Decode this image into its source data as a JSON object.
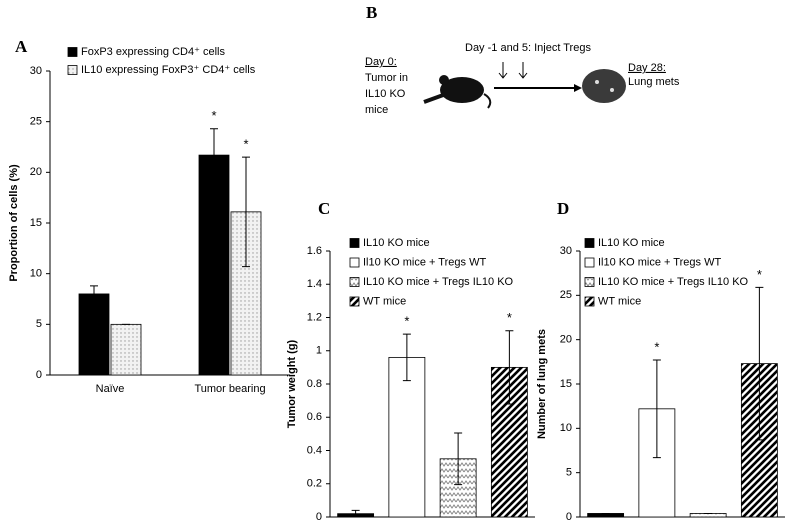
{
  "chart_data": [
    {
      "type": "bar",
      "panel": "A",
      "ylabel": "Proportion of cells (%)",
      "categories": [
        "Naïve",
        "Tumor bearing"
      ],
      "series": [
        {
          "name": "FoxP3 expressing CD4⁺ cells",
          "color": "#000000",
          "pattern": "solid",
          "values": [
            8,
            21.7
          ],
          "errors": [
            0.8,
            2.6
          ],
          "significance": [
            null,
            "*"
          ]
        },
        {
          "name": "IL10 expressing FoxP3⁺ CD4⁺ cells",
          "color": "#d8d8d8",
          "pattern": "dots",
          "values": [
            5,
            16.1
          ],
          "errors": [
            0,
            5.4
          ],
          "significance": [
            null,
            "*"
          ]
        }
      ],
      "ylim": [
        0,
        30
      ],
      "yticks": [
        0,
        5,
        10,
        15,
        20,
        25,
        30
      ]
    },
    {
      "type": "bar",
      "panel": "C",
      "ylabel": "Tumor weight (g)",
      "series": [
        {
          "name": "IL10 KO mice",
          "color": "#000000",
          "pattern": "solid",
          "values": [
            0.02
          ],
          "errors": [
            0.02
          ],
          "significance": [
            null
          ]
        },
        {
          "name": "Il10 KO mice + Tregs WT",
          "color": "#ffffff",
          "pattern": "open",
          "values": [
            0.96
          ],
          "errors": [
            0.14
          ],
          "significance": [
            "*"
          ]
        },
        {
          "name": "IL10 KO mice + Tregs IL10 KO",
          "color": "#808080",
          "pattern": "zigzag",
          "values": [
            0.35
          ],
          "errors": [
            0.155
          ],
          "significance": [
            null
          ]
        },
        {
          "name": "WT mice",
          "color": "#000000",
          "pattern": "diagonal",
          "values": [
            0.9
          ],
          "errors": [
            0.22
          ],
          "significance": [
            "*"
          ]
        }
      ],
      "ylim": [
        0,
        1.6
      ],
      "yticks": [
        0,
        0.2,
        0.4,
        0.6,
        0.8,
        1,
        1.2,
        1.4,
        1.6
      ]
    },
    {
      "type": "bar",
      "panel": "D",
      "ylabel": "Number of lung mets",
      "series": [
        {
          "name": "IL10 KO mice",
          "color": "#000000",
          "pattern": "solid",
          "values": [
            0.4
          ],
          "errors": [
            0
          ],
          "significance": [
            null
          ]
        },
        {
          "name": "Il10 KO mice + Tregs WT",
          "color": "#ffffff",
          "pattern": "open",
          "values": [
            12.2
          ],
          "errors": [
            5.5
          ],
          "significance": [
            "*"
          ]
        },
        {
          "name": "IL10 KO mice + Tregs IL10 KO",
          "color": "#808080",
          "pattern": "zigzag",
          "values": [
            0.4
          ],
          "errors": [
            0
          ],
          "significance": [
            null
          ]
        },
        {
          "name": "WT mice",
          "color": "#000000",
          "pattern": "diagonal",
          "values": [
            17.3
          ],
          "errors": [
            8.6
          ],
          "significance": [
            "*"
          ]
        }
      ],
      "ylim": [
        0,
        30
      ],
      "yticks": [
        0,
        5,
        10,
        15,
        20,
        25,
        30
      ]
    }
  ],
  "diagram": {
    "panel": "B",
    "start": [
      "Day 0:",
      "Tumor in",
      "IL10 KO",
      "mice"
    ],
    "injection": "Day -1 and 5: Inject Tregs",
    "end": [
      "Day 28:",
      "Lung mets"
    ]
  }
}
